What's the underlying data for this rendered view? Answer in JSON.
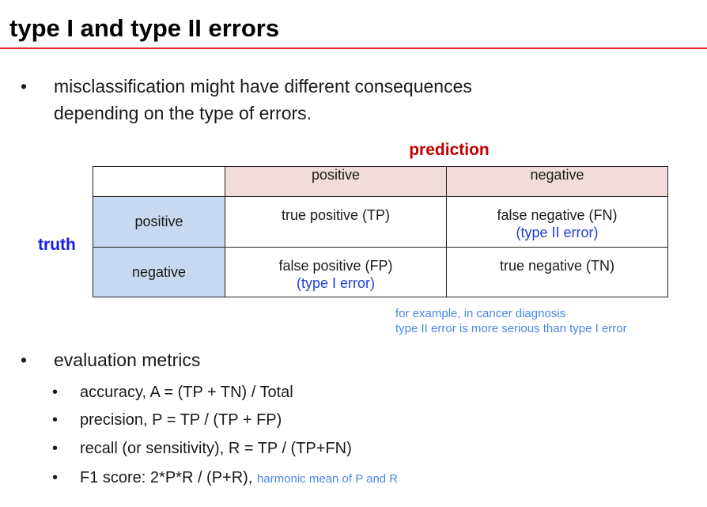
{
  "slide": {
    "title": "type I and type II errors"
  },
  "intro_bullet": {
    "line1": "misclassification might have different consequences",
    "line2": "depending on the type of errors."
  },
  "confusion_matrix": {
    "prediction_label": "prediction",
    "truth_label": "truth",
    "col_headers": [
      "positive",
      "negative"
    ],
    "row_headers": [
      "positive",
      "negative"
    ],
    "cells": {
      "tp": "true positive (TP)",
      "fn": "false negative (FN)",
      "fn_note": "(type II error)",
      "fp": "false positive (FP)",
      "fp_note": "(type I error)",
      "tn": "true negative (TN)"
    }
  },
  "example_note": {
    "line1": "for example, in cancer diagnosis",
    "line2": "type II error is more serious than type I error"
  },
  "metrics": {
    "heading": "evaluation metrics",
    "items": [
      "accuracy, A = (TP + TN) / Total",
      "precision, P = TP / (TP + FP)",
      "recall (or sensitivity), R = TP / (TP+FN)",
      "F1 score: 2*P*R / (P+R),"
    ],
    "f1_note": "harmonic mean of P and R"
  },
  "bullet_char": "•",
  "colors": {
    "title_rule": "#e32626",
    "prediction": "#c00000",
    "truth": "#1a1aee",
    "prediction_header_bg": "#f2dcdb",
    "truth_header_bg": "#c6d9f0",
    "error_text": "#1f3fd6",
    "note_text": "#4a86e8"
  }
}
